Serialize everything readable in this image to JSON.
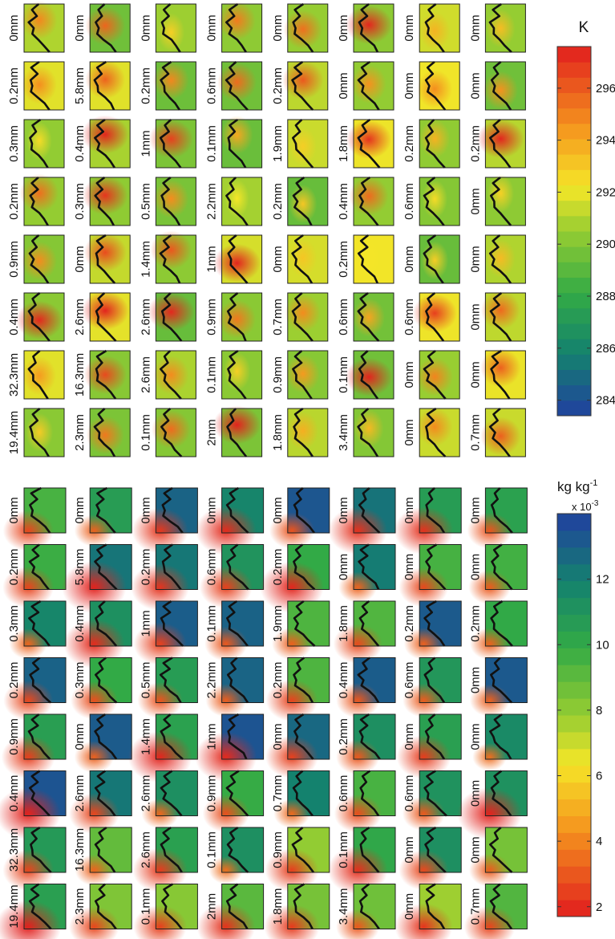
{
  "top": {
    "panel_labels": [
      [
        "0mm",
        "0mm",
        "0mm",
        "0mm",
        "0mm",
        "0mm",
        "0mm",
        "0mm"
      ],
      [
        "0.2mm",
        "5.8mm",
        "0.2mm",
        "0.6mm",
        "0.2mm",
        "0mm",
        "0mm",
        "0mm"
      ],
      [
        "0.3mm",
        "0.4mm",
        "1mm",
        "0.1mm",
        "1.9mm",
        "1.8mm",
        "0.2mm",
        "0.2mm"
      ],
      [
        "0.2mm",
        "0.3mm",
        "0.5mm",
        "2.2mm",
        "0.2mm",
        "0.4mm",
        "0.6mm",
        "0mm"
      ],
      [
        "0.9mm",
        "0mm",
        "1.4mm",
        "1mm",
        "0mm",
        "0.2mm",
        "0mm",
        "0mm"
      ],
      [
        "0.4mm",
        "2.6mm",
        "2.6mm",
        "0.9mm",
        "0.7mm",
        "0.6mm",
        "0.6mm",
        "0mm"
      ],
      [
        "32.3mm",
        "16.3mm",
        "2.6mm",
        "0.1mm",
        "0.9mm",
        "0.1mm",
        "0mm",
        "0mm"
      ],
      [
        "19.4mm",
        "2.3mm",
        "0.1mm",
        "2mm",
        "1.8mm",
        "3.4mm",
        "0mm",
        "0.7mm"
      ]
    ],
    "colorbar": {
      "title": "K",
      "lim": [
        283.4,
        297.6
      ],
      "ticks": [
        284,
        286,
        288,
        290,
        292,
        294,
        296
      ]
    }
  },
  "bottom": {
    "panel_labels": [
      [
        "0mm",
        "0mm",
        "0mm",
        "0mm",
        "0mm",
        "0mm",
        "0mm",
        "0mm"
      ],
      [
        "0.2mm",
        "5.8mm",
        "0.2mm",
        "0.6mm",
        "0.2mm",
        "0mm",
        "0mm",
        "0mm"
      ],
      [
        "0.3mm",
        "0.4mm",
        "1mm",
        "0.1mm",
        "1.9mm",
        "1.8mm",
        "0.2mm",
        "0.2mm"
      ],
      [
        "0.2mm",
        "0.3mm",
        "0.5mm",
        "2.2mm",
        "0.2mm",
        "0.4mm",
        "0.6mm",
        "0mm"
      ],
      [
        "0.9mm",
        "0mm",
        "1.4mm",
        "1mm",
        "0mm",
        "0.2mm",
        "0mm",
        "0mm"
      ],
      [
        "0.4mm",
        "2.6mm",
        "2.6mm",
        "0.9mm",
        "0.7mm",
        "0.6mm",
        "0.6mm",
        "0mm"
      ],
      [
        "32.3mm",
        "16.3mm",
        "2.6mm",
        "0.1mm",
        "0.9mm",
        "0.1mm",
        "0mm",
        "0mm"
      ],
      [
        "19.4mm",
        "2.3mm",
        "0.1mm",
        "2mm",
        "1.8mm",
        "3.4mm",
        "0mm",
        "0.7mm"
      ]
    ],
    "colorbar": {
      "title": "kg kg",
      "title_sup": "-1",
      "scale": "x 10",
      "scale_sup": "-3",
      "lim": [
        1.7,
        14
      ],
      "ticks": [
        2,
        4,
        6,
        8,
        10,
        12
      ]
    }
  }
}
